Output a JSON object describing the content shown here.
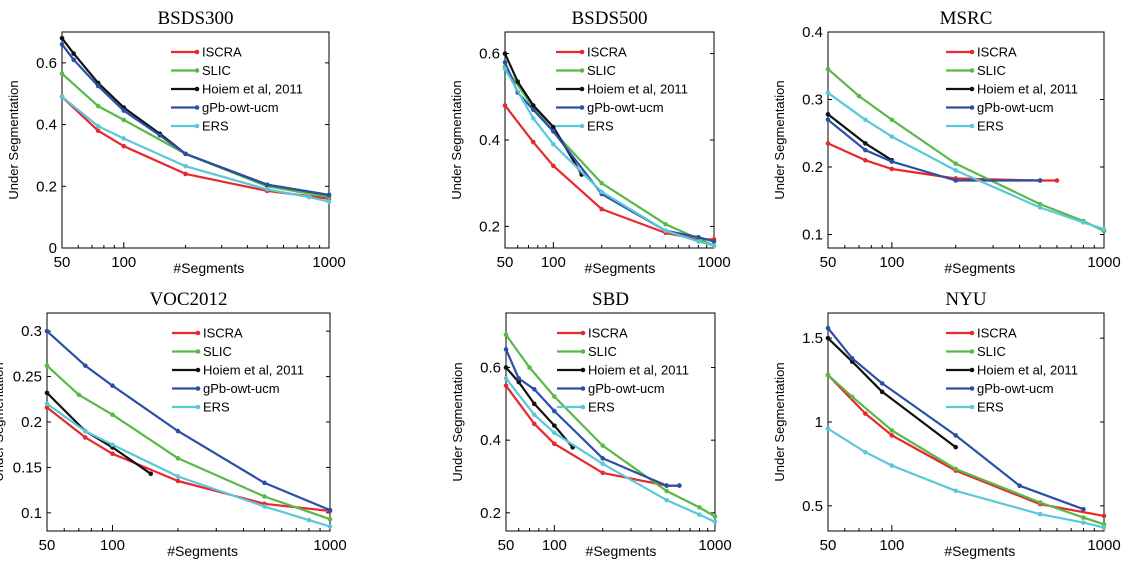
{
  "chart_data": [
    {
      "type": "line",
      "title": "BSDS300",
      "xlabel": "#Segments",
      "ylabel": "Under Segmentation",
      "xscale": "log",
      "xlim": [
        50,
        1000
      ],
      "ylim": [
        0,
        0.7
      ],
      "xticks": [
        50,
        100,
        1000
      ],
      "xtick_labels": [
        "50",
        "100",
        "1000"
      ],
      "yticks": [
        0,
        0.2,
        0.4,
        0.6
      ],
      "ytick_labels": [
        "0",
        "0.2",
        "0.4",
        "0.6"
      ],
      "legend": "top-right",
      "series": [
        {
          "name": "ISCRA",
          "color": "#e8282c",
          "x": [
            50,
            75,
            100,
            200,
            500,
            1000
          ],
          "y": [
            0.49,
            0.38,
            0.33,
            0.24,
            0.185,
            0.16
          ]
        },
        {
          "name": "SLIC",
          "color": "#58b947",
          "x": [
            50,
            75,
            100,
            200,
            500,
            1000
          ],
          "y": [
            0.565,
            0.46,
            0.415,
            0.305,
            0.2,
            0.165
          ]
        },
        {
          "name": "Hoiem et al, 2011",
          "color": "#111111",
          "x": [
            50,
            57,
            75,
            100,
            150,
            200,
            500,
            1000
          ],
          "y": [
            0.68,
            0.63,
            0.535,
            0.455,
            0.37,
            0.305,
            0.205,
            0.172
          ]
        },
        {
          "name": "gPb-owt-ucm",
          "color": "#2b4fa8",
          "x": [
            50,
            57,
            75,
            100,
            150,
            200,
            500,
            1000
          ],
          "y": [
            0.66,
            0.61,
            0.525,
            0.445,
            0.365,
            0.305,
            0.205,
            0.172
          ]
        },
        {
          "name": "ERS",
          "color": "#5ac8d8",
          "x": [
            50,
            75,
            100,
            200,
            500,
            800,
            1000
          ],
          "y": [
            0.49,
            0.395,
            0.355,
            0.265,
            0.19,
            0.165,
            0.15
          ]
        }
      ]
    },
    {
      "type": "line",
      "title": "BSDS500",
      "xlabel": "#Segments",
      "ylabel": "Under Segmentation",
      "xscale": "log",
      "xlim": [
        50,
        1000
      ],
      "ylim": [
        0.15,
        0.65
      ],
      "xticks": [
        50,
        100,
        1000
      ],
      "xtick_labels": [
        "50",
        "100",
        "1000"
      ],
      "yticks": [
        0.2,
        0.4,
        0.6
      ],
      "ytick_labels": [
        "0.2",
        "0.4",
        "0.6"
      ],
      "legend": "top-right",
      "series": [
        {
          "name": "ISCRA",
          "color": "#e8282c",
          "x": [
            50,
            75,
            100,
            200,
            500,
            800,
            1000
          ],
          "y": [
            0.48,
            0.395,
            0.34,
            0.24,
            0.185,
            0.17,
            0.17
          ]
        },
        {
          "name": "SLIC",
          "color": "#58b947",
          "x": [
            50,
            75,
            100,
            200,
            500,
            1000
          ],
          "y": [
            0.57,
            0.475,
            0.42,
            0.3,
            0.205,
            0.155
          ]
        },
        {
          "name": "Hoiem et al, 2011",
          "color": "#111111",
          "x": [
            50,
            60,
            75,
            100,
            150
          ],
          "y": [
            0.6,
            0.535,
            0.48,
            0.43,
            0.32
          ]
        },
        {
          "name": "gPb-owt-ucm",
          "color": "#2b4fa8",
          "x": [
            50,
            60,
            75,
            100,
            200,
            500,
            800,
            1000
          ],
          "y": [
            0.58,
            0.51,
            0.47,
            0.42,
            0.275,
            0.19,
            0.175,
            0.165
          ]
        },
        {
          "name": "ERS",
          "color": "#5ac8d8",
          "x": [
            50,
            75,
            100,
            200,
            500,
            800,
            1000
          ],
          "y": [
            0.565,
            0.45,
            0.39,
            0.28,
            0.19,
            0.165,
            0.155
          ]
        }
      ]
    },
    {
      "type": "line",
      "title": "MSRC",
      "xlabel": "#Segments",
      "ylabel": "Under Segmentation",
      "xscale": "log",
      "xlim": [
        50,
        1000
      ],
      "ylim": [
        0.08,
        0.4
      ],
      "xticks": [
        50,
        100,
        1000
      ],
      "xtick_labels": [
        "50",
        "100",
        "1000"
      ],
      "yticks": [
        0.1,
        0.2,
        0.3,
        0.4
      ],
      "ytick_labels": [
        "0.1",
        "0.2",
        "0.3",
        "0.4"
      ],
      "legend": "top-right",
      "series": [
        {
          "name": "ISCRA",
          "color": "#e8282c",
          "x": [
            50,
            75,
            100,
            200,
            500,
            600
          ],
          "y": [
            0.235,
            0.21,
            0.197,
            0.183,
            0.18,
            0.18
          ]
        },
        {
          "name": "SLIC",
          "color": "#58b947",
          "x": [
            50,
            70,
            100,
            200,
            500,
            800,
            1000
          ],
          "y": [
            0.345,
            0.305,
            0.27,
            0.205,
            0.145,
            0.12,
            0.105
          ]
        },
        {
          "name": "Hoiem et al, 2011",
          "color": "#111111",
          "x": [
            50,
            75,
            100
          ],
          "y": [
            0.278,
            0.235,
            0.21
          ]
        },
        {
          "name": "gPb-owt-ucm",
          "color": "#2b4fa8",
          "x": [
            50,
            75,
            100,
            200,
            500
          ],
          "y": [
            0.27,
            0.225,
            0.208,
            0.18,
            0.18
          ]
        },
        {
          "name": "ERS",
          "color": "#5ac8d8",
          "x": [
            50,
            75,
            100,
            200,
            500,
            800,
            1000
          ],
          "y": [
            0.31,
            0.27,
            0.245,
            0.195,
            0.14,
            0.118,
            0.108
          ]
        }
      ]
    },
    {
      "type": "line",
      "title": "VOC2012",
      "xlabel": "#Segments",
      "ylabel": "Under Segmentation",
      "xscale": "log",
      "xlim": [
        50,
        1000
      ],
      "ylim": [
        0.08,
        0.32
      ],
      "xticks": [
        50,
        100,
        1000
      ],
      "xtick_labels": [
        "50",
        "100",
        "1000"
      ],
      "yticks": [
        0.1,
        0.15,
        0.2,
        0.25,
        0.3
      ],
      "ytick_labels": [
        "0.1",
        "0.15",
        "0.2",
        "0.25",
        "0.3"
      ],
      "legend": "top-right",
      "series": [
        {
          "name": "ISCRA",
          "color": "#e8282c",
          "x": [
            50,
            75,
            100,
            200,
            500,
            1000
          ],
          "y": [
            0.216,
            0.183,
            0.165,
            0.135,
            0.11,
            0.102
          ]
        },
        {
          "name": "SLIC",
          "color": "#58b947",
          "x": [
            50,
            70,
            100,
            200,
            500,
            1000
          ],
          "y": [
            0.262,
            0.23,
            0.208,
            0.16,
            0.118,
            0.093
          ]
        },
        {
          "name": "Hoiem et al, 2011",
          "color": "#111111",
          "x": [
            50,
            75,
            100,
            150
          ],
          "y": [
            0.232,
            0.19,
            0.172,
            0.143
          ]
        },
        {
          "name": "gPb-owt-ucm",
          "color": "#2b4fa8",
          "x": [
            50,
            75,
            100,
            200,
            500,
            1000
          ],
          "y": [
            0.3,
            0.262,
            0.24,
            0.19,
            0.133,
            0.103
          ]
        },
        {
          "name": "ERS",
          "color": "#5ac8d8",
          "x": [
            50,
            75,
            100,
            200,
            500,
            800,
            1000
          ],
          "y": [
            0.22,
            0.19,
            0.175,
            0.14,
            0.107,
            0.092,
            0.085
          ]
        }
      ]
    },
    {
      "type": "line",
      "title": "SBD",
      "xlabel": "#Segments",
      "ylabel": "Under Segmentation",
      "xscale": "log",
      "xlim": [
        50,
        1000
      ],
      "ylim": [
        0.15,
        0.75
      ],
      "xticks": [
        50,
        100,
        1000
      ],
      "xtick_labels": [
        "50",
        "100",
        "1000"
      ],
      "yticks": [
        0.2,
        0.4,
        0.6
      ],
      "ytick_labels": [
        "0.2",
        "0.4",
        "0.6"
      ],
      "legend": "top-right",
      "series": [
        {
          "name": "ISCRA",
          "color": "#e8282c",
          "x": [
            50,
            75,
            100,
            200,
            500,
            600
          ],
          "y": [
            0.55,
            0.445,
            0.39,
            0.31,
            0.275,
            0.275
          ]
        },
        {
          "name": "SLIC",
          "color": "#58b947",
          "x": [
            50,
            70,
            100,
            200,
            500,
            800,
            1000
          ],
          "y": [
            0.69,
            0.6,
            0.52,
            0.385,
            0.26,
            0.215,
            0.19
          ]
        },
        {
          "name": "Hoiem et al, 2011",
          "color": "#111111",
          "x": [
            50,
            60,
            75,
            100,
            130
          ],
          "y": [
            0.6,
            0.56,
            0.5,
            0.44,
            0.38
          ]
        },
        {
          "name": "gPb-owt-ucm",
          "color": "#2b4fa8",
          "x": [
            50,
            60,
            75,
            100,
            200,
            500,
            600
          ],
          "y": [
            0.65,
            0.57,
            0.54,
            0.48,
            0.35,
            0.275,
            0.275
          ]
        },
        {
          "name": "ERS",
          "color": "#5ac8d8",
          "x": [
            50,
            75,
            100,
            200,
            500,
            800,
            1000
          ],
          "y": [
            0.57,
            0.47,
            0.42,
            0.335,
            0.235,
            0.195,
            0.175
          ]
        }
      ]
    },
    {
      "type": "line",
      "title": "NYU",
      "xlabel": "#Segments",
      "ylabel": "Under Segmentation",
      "xscale": "log",
      "xlim": [
        50,
        1000
      ],
      "ylim": [
        0.35,
        1.65
      ],
      "xticks": [
        50,
        100,
        1000
      ],
      "xtick_labels": [
        "50",
        "100",
        "1000"
      ],
      "yticks": [
        0.5,
        1,
        1.5
      ],
      "ytick_labels": [
        "0.5",
        "1",
        "1.5"
      ],
      "legend": "top-right",
      "series": [
        {
          "name": "ISCRA",
          "color": "#e8282c",
          "x": [
            50,
            75,
            100,
            200,
            500,
            1000
          ],
          "y": [
            1.28,
            1.05,
            0.92,
            0.71,
            0.51,
            0.44
          ]
        },
        {
          "name": "SLIC",
          "color": "#58b947",
          "x": [
            50,
            65,
            100,
            200,
            500,
            800,
            1000
          ],
          "y": [
            1.28,
            1.15,
            0.95,
            0.72,
            0.52,
            0.43,
            0.39
          ]
        },
        {
          "name": "Hoiem et al, 2011",
          "color": "#111111",
          "x": [
            50,
            65,
            90,
            200
          ],
          "y": [
            1.5,
            1.36,
            1.18,
            0.85
          ]
        },
        {
          "name": "gPb-owt-ucm",
          "color": "#2b4fa8",
          "x": [
            50,
            65,
            90,
            200,
            400,
            800
          ],
          "y": [
            1.56,
            1.38,
            1.23,
            0.92,
            0.62,
            0.48
          ]
        },
        {
          "name": "ERS",
          "color": "#5ac8d8",
          "x": [
            50,
            75,
            100,
            200,
            500,
            800,
            1000
          ],
          "y": [
            0.96,
            0.82,
            0.74,
            0.59,
            0.45,
            0.4,
            0.37
          ]
        }
      ]
    }
  ]
}
